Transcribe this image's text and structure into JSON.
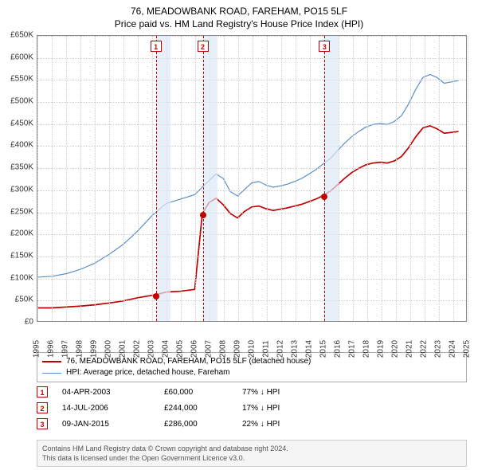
{
  "title": {
    "line1": "76, MEADOWBANK ROAD, FAREHAM, PO15 5LF",
    "line2": "Price paid vs. HM Land Registry's House Price Index (HPI)",
    "fontsize": 12,
    "color": "#000000"
  },
  "chart": {
    "type": "line",
    "background_color": "#ffffff",
    "grid_color": "#cccccc",
    "border_color": "#888888",
    "x_years": [
      1995,
      1996,
      1997,
      1998,
      1999,
      2000,
      2001,
      2002,
      2003,
      2004,
      2005,
      2006,
      2007,
      2008,
      2009,
      2010,
      2011,
      2012,
      2013,
      2014,
      2015,
      2016,
      2017,
      2018,
      2019,
      2020,
      2021,
      2022,
      2023,
      2024,
      2025
    ],
    "xlim": [
      1995,
      2025
    ],
    "y_ticks": [
      0,
      50000,
      100000,
      150000,
      200000,
      250000,
      300000,
      350000,
      400000,
      450000,
      500000,
      550000,
      600000,
      650000
    ],
    "y_tick_labels": [
      "£0",
      "£50K",
      "£100K",
      "£150K",
      "£200K",
      "£250K",
      "£300K",
      "£350K",
      "£400K",
      "£450K",
      "£500K",
      "£550K",
      "£600K",
      "£650K"
    ],
    "ylim": [
      0,
      650000
    ],
    "tick_fontsize": 10,
    "series": {
      "property": {
        "label": "76, MEADOWBANK ROAD, FAREHAM, PO15 5LF (detached house)",
        "color": "#c00000",
        "width": 1.7,
        "data": [
          [
            1995,
            30000
          ],
          [
            1996,
            30000
          ],
          [
            1997,
            32000
          ],
          [
            1998,
            34000
          ],
          [
            1999,
            37000
          ],
          [
            2000,
            41000
          ],
          [
            2001,
            46000
          ],
          [
            2002,
            53000
          ],
          [
            2003.26,
            60000
          ],
          [
            2003.5,
            62000
          ],
          [
            2004,
            66000
          ],
          [
            2005,
            68000
          ],
          [
            2006,
            72000
          ],
          [
            2006.53,
            244000
          ],
          [
            2007,
            270000
          ],
          [
            2007.5,
            280000
          ],
          [
            2008,
            265000
          ],
          [
            2008.5,
            245000
          ],
          [
            2009,
            235000
          ],
          [
            2009.5,
            250000
          ],
          [
            2010,
            260000
          ],
          [
            2010.5,
            262000
          ],
          [
            2011,
            256000
          ],
          [
            2011.5,
            252000
          ],
          [
            2012,
            255000
          ],
          [
            2012.5,
            258000
          ],
          [
            2013,
            262000
          ],
          [
            2013.5,
            266000
          ],
          [
            2014,
            272000
          ],
          [
            2014.5,
            278000
          ],
          [
            2015.02,
            286000
          ],
          [
            2015.5,
            296000
          ],
          [
            2016,
            310000
          ],
          [
            2016.5,
            325000
          ],
          [
            2017,
            338000
          ],
          [
            2017.5,
            348000
          ],
          [
            2018,
            356000
          ],
          [
            2018.5,
            360000
          ],
          [
            2019,
            362000
          ],
          [
            2019.5,
            360000
          ],
          [
            2020,
            365000
          ],
          [
            2020.5,
            375000
          ],
          [
            2021,
            395000
          ],
          [
            2021.5,
            420000
          ],
          [
            2022,
            440000
          ],
          [
            2022.5,
            445000
          ],
          [
            2023,
            438000
          ],
          [
            2023.5,
            428000
          ],
          [
            2024,
            430000
          ],
          [
            2024.5,
            432000
          ]
        ]
      },
      "hpi": {
        "label": "HPI: Average price, detached house, Fareham",
        "color": "#5b8fc7",
        "width": 1.2,
        "data": [
          [
            1995,
            100000
          ],
          [
            1996,
            102000
          ],
          [
            1997,
            108000
          ],
          [
            1998,
            118000
          ],
          [
            1999,
            132000
          ],
          [
            2000,
            152000
          ],
          [
            2001,
            175000
          ],
          [
            2002,
            205000
          ],
          [
            2003,
            240000
          ],
          [
            2004,
            268000
          ],
          [
            2005,
            278000
          ],
          [
            2006,
            288000
          ],
          [
            2007,
            320000
          ],
          [
            2007.5,
            335000
          ],
          [
            2008,
            325000
          ],
          [
            2008.5,
            295000
          ],
          [
            2009,
            285000
          ],
          [
            2009.5,
            300000
          ],
          [
            2010,
            315000
          ],
          [
            2010.5,
            318000
          ],
          [
            2011,
            310000
          ],
          [
            2011.5,
            305000
          ],
          [
            2012,
            308000
          ],
          [
            2012.5,
            312000
          ],
          [
            2013,
            318000
          ],
          [
            2013.5,
            325000
          ],
          [
            2014,
            335000
          ],
          [
            2014.5,
            345000
          ],
          [
            2015,
            358000
          ],
          [
            2015.5,
            370000
          ],
          [
            2016,
            388000
          ],
          [
            2016.5,
            405000
          ],
          [
            2017,
            420000
          ],
          [
            2017.5,
            432000
          ],
          [
            2018,
            442000
          ],
          [
            2018.5,
            448000
          ],
          [
            2019,
            450000
          ],
          [
            2019.5,
            448000
          ],
          [
            2020,
            455000
          ],
          [
            2020.5,
            468000
          ],
          [
            2021,
            495000
          ],
          [
            2021.5,
            528000
          ],
          [
            2022,
            555000
          ],
          [
            2022.5,
            562000
          ],
          [
            2023,
            555000
          ],
          [
            2023.5,
            542000
          ],
          [
            2024,
            545000
          ],
          [
            2024.5,
            548000
          ]
        ]
      }
    },
    "sale_bands": [
      {
        "start": 2003.26,
        "end": 2004.26,
        "color": "#dde8f5"
      },
      {
        "start": 2006.53,
        "end": 2007.53,
        "color": "#dde8f5"
      },
      {
        "start": 2015.02,
        "end": 2016.02,
        "color": "#dde8f5"
      }
    ],
    "sale_markers": [
      {
        "n": "1",
        "x": 2003.26,
        "y": 60000
      },
      {
        "n": "2",
        "x": 2006.53,
        "y": 244000
      },
      {
        "n": "3",
        "x": 2015.02,
        "y": 286000
      }
    ],
    "flag_border_color": "#c00000",
    "flag_text_color": "#c00000",
    "flag_bg_color": "#ffffff"
  },
  "legend": {
    "items": [
      {
        "color": "#c00000",
        "width": 2,
        "label_key": "chart.series.property.label"
      },
      {
        "color": "#5b8fc7",
        "width": 1,
        "label_key": "chart.series.hpi.label"
      }
    ]
  },
  "sales_table": {
    "rows": [
      {
        "n": "1",
        "date": "04-APR-2003",
        "price": "£60,000",
        "delta": "77% ↓ HPI"
      },
      {
        "n": "2",
        "date": "14-JUL-2006",
        "price": "£244,000",
        "delta": "17% ↓ HPI"
      },
      {
        "n": "3",
        "date": "09-JAN-2015",
        "price": "£286,000",
        "delta": "22% ↓ HPI"
      }
    ]
  },
  "footer": {
    "line1": "Contains HM Land Registry data © Crown copyright and database right 2024.",
    "line2": "This data is licensed under the Open Government Licence v3.0.",
    "bg": "#f5f5f5",
    "border": "#cccccc",
    "color": "#555555"
  }
}
